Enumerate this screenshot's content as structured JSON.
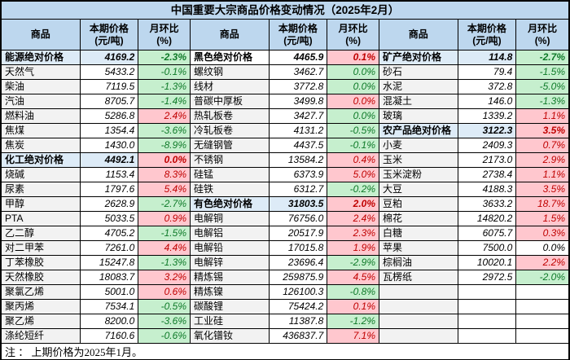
{
  "title": "中国重要大宗商品价格变动情况（2025年2月）",
  "note": {
    "text": "注 ： 上期价格为2025年1月。"
  },
  "columns": {
    "name": "商品",
    "price_l1": "本期价格",
    "price_l2": "(元/吨)",
    "pct_l1": "月环比",
    "pct_l2": "(%)"
  },
  "colors": {
    "header_bg": "#BDD7EE",
    "highlight_bg": "#DDEBF7",
    "name_bg": "#F2F2F2",
    "increase_bg": "#FFC7CE",
    "increase_text": "#C00000",
    "decrease_bg": "#C6EFCE",
    "decrease_text": "#0E7A28"
  },
  "groups": [
    {
      "rows": [
        {
          "name": "能源绝对价格",
          "price": "4169.2",
          "pct": "-2.3%",
          "trend": "down",
          "section": true,
          "highlight": true
        },
        {
          "name": "天然气",
          "price": "5433.2",
          "pct": "-0.1%",
          "trend": "down"
        },
        {
          "name": "柴油",
          "price": "7119.5",
          "pct": "-1.3%",
          "trend": "down"
        },
        {
          "name": "汽油",
          "price": "8705.7",
          "pct": "-1.4%",
          "trend": "down"
        },
        {
          "name": "燃料油",
          "price": "5286.8",
          "pct": "2.4%",
          "trend": "up"
        },
        {
          "name": "焦煤",
          "price": "1354.4",
          "pct": "-3.6%",
          "trend": "down"
        },
        {
          "name": "焦炭",
          "price": "1430.0",
          "pct": "-8.9%",
          "trend": "down"
        },
        {
          "name": "化工绝对价格",
          "price": "4492.1",
          "pct": "0.0%",
          "trend": "up",
          "section": true,
          "highlight": true
        },
        {
          "name": "烧碱",
          "price": "1153.4",
          "pct": "8.3%",
          "trend": "up"
        },
        {
          "name": "尿素",
          "price": "1797.6",
          "pct": "5.4%",
          "trend": "up"
        },
        {
          "name": "甲醇",
          "price": "2628.9",
          "pct": "-2.7%",
          "trend": "down"
        },
        {
          "name": "PTA",
          "price": "5033.5",
          "pct": "0.9%",
          "trend": "up"
        },
        {
          "name": "乙二醇",
          "price": "4705.2",
          "pct": "-1.5%",
          "trend": "down"
        },
        {
          "name": "对二甲苯",
          "price": "7261.0",
          "pct": "4.4%",
          "trend": "up"
        },
        {
          "name": "丁苯橡胶",
          "price": "15247.8",
          "pct": "-1.3%",
          "trend": "down"
        },
        {
          "name": "天然橡胶",
          "price": "18083.7",
          "pct": "3.2%",
          "trend": "up"
        },
        {
          "name": "聚氯乙烯",
          "price": "5001.0",
          "pct": "0.6%",
          "trend": "up"
        },
        {
          "name": "聚丙烯",
          "price": "7534.1",
          "pct": "-0.5%",
          "trend": "down"
        },
        {
          "name": "聚乙烯",
          "price": "8200.0",
          "pct": "-3.6%",
          "trend": "down"
        },
        {
          "name": "涤纶短纤",
          "price": "7160.6",
          "pct": "-0.6%",
          "trend": "down"
        }
      ]
    },
    {
      "rows": [
        {
          "name": "黑色绝对价格",
          "price": "4465.9",
          "pct": "0.1%",
          "trend": "up",
          "section": true,
          "highlight": false
        },
        {
          "name": "螺纹钢",
          "price": "3462.7",
          "pct": "0.0%",
          "trend": "down"
        },
        {
          "name": "线材",
          "price": "3772.8",
          "pct": "0.0%",
          "trend": "down"
        },
        {
          "name": "普碳中厚板",
          "price": "3499.8",
          "pct": "0.0%",
          "trend": "up"
        },
        {
          "name": "热轧板卷",
          "price": "3427.7",
          "pct": "0.0%",
          "trend": "down"
        },
        {
          "name": "冷轧板卷",
          "price": "4131.2",
          "pct": "-0.5%",
          "trend": "down"
        },
        {
          "name": "无缝钢管",
          "price": "4437.5",
          "pct": "-0.1%",
          "trend": "down"
        },
        {
          "name": "不锈钢",
          "price": "13584.2",
          "pct": "0.4%",
          "trend": "up"
        },
        {
          "name": "硅锰",
          "price": "6373.9",
          "pct": "5.0%",
          "trend": "up"
        },
        {
          "name": "硅铁",
          "price": "6312.7",
          "pct": "-0.2%",
          "trend": "down"
        },
        {
          "name": "有色绝对价格",
          "price": "31803.5",
          "pct": "2.0%",
          "trend": "up",
          "section": true,
          "highlight": true
        },
        {
          "name": "电解铜",
          "price": "76756.0",
          "pct": "2.4%",
          "trend": "up"
        },
        {
          "name": "电解铝",
          "price": "20517.9",
          "pct": "2.3%",
          "trend": "up"
        },
        {
          "name": "电解铅",
          "price": "17015.8",
          "pct": "1.9%",
          "trend": "up"
        },
        {
          "name": "电解锌",
          "price": "23696.4",
          "pct": "-2.9%",
          "trend": "down"
        },
        {
          "name": "精炼锡",
          "price": "259875.9",
          "pct": "4.5%",
          "trend": "up"
        },
        {
          "name": "精炼镍",
          "price": "126100.3",
          "pct": "-0.8%",
          "trend": "down"
        },
        {
          "name": "碳酸锂",
          "price": "75424.2",
          "pct": "0.1%",
          "trend": "up"
        },
        {
          "name": "工业硅",
          "price": "11387.8",
          "pct": "-1.2%",
          "trend": "down"
        },
        {
          "name": "氧化镨钕",
          "price": "436837.7",
          "pct": "7.1%",
          "trend": "up"
        }
      ]
    },
    {
      "rows": [
        {
          "name": "矿产绝对价格",
          "price": "114.8",
          "pct": "-2.7%",
          "trend": "down",
          "section": true,
          "highlight": true
        },
        {
          "name": "砂石",
          "price": "79.4",
          "pct": "-1.5%",
          "trend": "down"
        },
        {
          "name": "水泥",
          "price": "372.8",
          "pct": "-5.0%",
          "trend": "down"
        },
        {
          "name": "混凝土",
          "price": "146.0",
          "pct": "-1.3%",
          "trend": "down"
        },
        {
          "name": "玻璃",
          "price": "1339.2",
          "pct": "1.1%",
          "trend": "up"
        },
        {
          "name": "农产品绝对价格",
          "price": "3122.3",
          "pct": "3.5%",
          "trend": "up",
          "section": true,
          "highlight": true
        },
        {
          "name": "小麦",
          "price": "2409.3",
          "pct": "0.7%",
          "trend": "up"
        },
        {
          "name": "玉米",
          "price": "2173.0",
          "pct": "2.9%",
          "trend": "up"
        },
        {
          "name": "玉米淀粉",
          "price": "2738.4",
          "pct": "1.1%",
          "trend": "up"
        },
        {
          "name": "大豆",
          "price": "4188.3",
          "pct": "3.5%",
          "trend": "up"
        },
        {
          "name": "豆粕",
          "price": "3633.2",
          "pct": "18.7%",
          "trend": "up"
        },
        {
          "name": "棉花",
          "price": "14820.2",
          "pct": "1.5%",
          "trend": "up"
        },
        {
          "name": "白糖",
          "price": "6075.7",
          "pct": "0.3%",
          "trend": "up"
        },
        {
          "name": "苹果",
          "price": "7500.0",
          "pct": "0.0%",
          "trend": "flat"
        },
        {
          "name": "棕榈油",
          "price": "10020.1",
          "pct": "2.2%",
          "trend": "up"
        },
        {
          "name": "瓦楞纸",
          "price": "2972.5",
          "pct": "-2.0%",
          "trend": "down"
        },
        {
          "name": "",
          "price": "",
          "pct": ""
        },
        {
          "name": "",
          "price": "",
          "pct": ""
        },
        {
          "name": "",
          "price": "",
          "pct": ""
        },
        {
          "name": "",
          "price": "",
          "pct": ""
        }
      ]
    }
  ]
}
